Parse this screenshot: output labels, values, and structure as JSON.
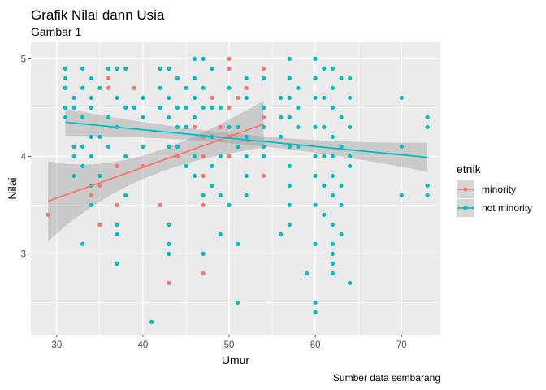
{
  "chart_data": {
    "type": "scatter",
    "title": "Grafik Nilai dann Usia",
    "subtitle": "Gambar 1",
    "xlabel": "Umur",
    "ylabel": "Nilai",
    "caption": "Sumber data sembarang",
    "xlim": [
      27,
      74.5
    ],
    "ylim": [
      2.17,
      5.17
    ],
    "x_ticks": [
      30,
      40,
      50,
      60,
      70
    ],
    "y_ticks": [
      3,
      4,
      5
    ],
    "x_tick_labels": [
      "30",
      "40",
      "50",
      "60",
      "70"
    ],
    "y_tick_labels": [
      "3",
      "4",
      "5"
    ],
    "grid": true,
    "legend": {
      "title": "etnik",
      "position": "right",
      "items": [
        {
          "label": "minority",
          "color": "#F8766D"
        },
        {
          "label": "not minority",
          "color": "#00BFC4"
        }
      ]
    },
    "series": [
      {
        "name": "minority",
        "color": "#F8766D",
        "points": [
          [
            29,
            3.4
          ],
          [
            34,
            3.6
          ],
          [
            35,
            3.3
          ],
          [
            35,
            3.7
          ],
          [
            36,
            4.8
          ],
          [
            36,
            4.7
          ],
          [
            37,
            3.9
          ],
          [
            37,
            3.5
          ],
          [
            39,
            4.7
          ],
          [
            40,
            3.9
          ],
          [
            42,
            3.5
          ],
          [
            43,
            2.7
          ],
          [
            44,
            4.0
          ],
          [
            46,
            4.3
          ],
          [
            47,
            4.2
          ],
          [
            47,
            4.0
          ],
          [
            47,
            3.8
          ],
          [
            47,
            3.5
          ],
          [
            47,
            2.8
          ],
          [
            48,
            4.6
          ],
          [
            49,
            4.3
          ],
          [
            50,
            5.0
          ],
          [
            50,
            4.9
          ],
          [
            50,
            4.5
          ],
          [
            50,
            4.2
          ],
          [
            50,
            4.0
          ],
          [
            51,
            4.6
          ],
          [
            52,
            4.7
          ],
          [
            54,
            4.9
          ],
          [
            54,
            4.4
          ],
          [
            54,
            3.8
          ]
        ],
        "trend": {
          "x": [
            29,
            54
          ],
          "y": [
            3.54,
            4.33
          ],
          "ci_lower": [
            3.13,
            4.09
          ],
          "ci_upper": [
            3.95,
            4.57
          ]
        }
      },
      {
        "name": "not minority",
        "color": "#00BFC4",
        "points": [
          [
            31,
            4.9
          ],
          [
            31,
            4.8
          ],
          [
            31,
            4.7
          ],
          [
            31,
            4.5
          ],
          [
            31,
            4.4
          ],
          [
            32,
            4.6
          ],
          [
            32,
            4.5
          ],
          [
            32,
            4.1
          ],
          [
            32,
            4.0
          ],
          [
            32,
            3.8
          ],
          [
            33,
            4.9
          ],
          [
            33,
            4.7
          ],
          [
            33,
            4.4
          ],
          [
            33,
            4.1
          ],
          [
            33,
            3.9
          ],
          [
            33,
            3.1
          ],
          [
            34,
            4.8
          ],
          [
            34,
            4.6
          ],
          [
            34,
            4.5
          ],
          [
            34,
            4.2
          ],
          [
            34,
            4.0
          ],
          [
            34,
            3.7
          ],
          [
            34,
            3.5
          ],
          [
            35,
            4.7
          ],
          [
            35,
            4.2
          ],
          [
            35,
            3.8
          ],
          [
            36,
            4.9
          ],
          [
            36,
            4.4
          ],
          [
            36,
            4.1
          ],
          [
            37,
            4.9
          ],
          [
            37,
            4.6
          ],
          [
            37,
            4.3
          ],
          [
            37,
            3.3
          ],
          [
            37,
            3.2
          ],
          [
            37,
            2.9
          ],
          [
            38,
            4.9
          ],
          [
            38,
            4.5
          ],
          [
            38,
            4.0
          ],
          [
            38,
            3.6
          ],
          [
            39,
            4.5
          ],
          [
            40,
            4.6
          ],
          [
            40,
            4.4
          ],
          [
            40,
            4.1
          ],
          [
            41,
            2.3
          ],
          [
            42,
            4.9
          ],
          [
            42,
            4.7
          ],
          [
            42,
            4.5
          ],
          [
            43,
            4.9
          ],
          [
            43,
            4.6
          ],
          [
            43,
            4.4
          ],
          [
            43,
            4.1
          ],
          [
            43,
            3.3
          ],
          [
            43,
            3.1
          ],
          [
            43,
            3.0
          ],
          [
            44,
            4.8
          ],
          [
            44,
            4.5
          ],
          [
            44,
            4.3
          ],
          [
            44,
            4.1
          ],
          [
            45,
            4.7
          ],
          [
            45,
            4.5
          ],
          [
            45,
            4.3
          ],
          [
            45,
            3.9
          ],
          [
            46,
            5.0
          ],
          [
            46,
            4.8
          ],
          [
            46,
            4.6
          ],
          [
            46,
            4.4
          ],
          [
            46,
            4.0
          ],
          [
            46,
            3.8
          ],
          [
            47,
            5.0
          ],
          [
            47,
            4.7
          ],
          [
            47,
            4.5
          ],
          [
            47,
            3.6
          ],
          [
            47,
            3.0
          ],
          [
            48,
            4.9
          ],
          [
            48,
            4.5
          ],
          [
            48,
            4.2
          ],
          [
            48,
            3.9
          ],
          [
            48,
            3.7
          ],
          [
            49,
            4.5
          ],
          [
            49,
            4.0
          ],
          [
            49,
            3.6
          ],
          [
            49,
            3.2
          ],
          [
            50,
            4.7
          ],
          [
            50,
            4.3
          ],
          [
            50,
            3.5
          ],
          [
            51,
            4.3
          ],
          [
            51,
            4.1
          ],
          [
            51,
            3.1
          ],
          [
            51,
            2.5
          ],
          [
            52,
            4.8
          ],
          [
            52,
            4.6
          ],
          [
            52,
            4.2
          ],
          [
            52,
            4.0
          ],
          [
            52,
            3.8
          ],
          [
            52,
            3.6
          ],
          [
            54,
            4.8
          ],
          [
            54,
            4.5
          ],
          [
            54,
            4.3
          ],
          [
            54,
            4.1
          ],
          [
            54,
            4.0
          ],
          [
            56,
            4.6
          ],
          [
            56,
            4.4
          ],
          [
            56,
            4.2
          ],
          [
            56,
            3.2
          ],
          [
            57,
            5.0
          ],
          [
            57,
            4.8
          ],
          [
            57,
            4.6
          ],
          [
            57,
            4.4
          ],
          [
            57,
            4.1
          ],
          [
            57,
            3.9
          ],
          [
            57,
            3.7
          ],
          [
            57,
            3.5
          ],
          [
            57,
            3.3
          ],
          [
            58,
            4.7
          ],
          [
            58,
            4.5
          ],
          [
            58,
            4.3
          ],
          [
            58,
            4.1
          ],
          [
            59,
            2.8
          ],
          [
            60,
            5.0
          ],
          [
            60,
            4.8
          ],
          [
            60,
            4.6
          ],
          [
            60,
            4.3
          ],
          [
            60,
            4.0
          ],
          [
            60,
            3.8
          ],
          [
            60,
            3.5
          ],
          [
            60,
            3.1
          ],
          [
            60,
            2.5
          ],
          [
            60,
            2.4
          ],
          [
            61,
            4.9
          ],
          [
            61,
            4.6
          ],
          [
            61,
            4.3
          ],
          [
            61,
            4.0
          ],
          [
            61,
            3.7
          ],
          [
            61,
            3.4
          ],
          [
            62,
            4.9
          ],
          [
            62,
            4.7
          ],
          [
            62,
            4.5
          ],
          [
            62,
            4.2
          ],
          [
            62,
            4.0
          ],
          [
            62,
            3.8
          ],
          [
            62,
            3.6
          ],
          [
            62,
            3.3
          ],
          [
            62,
            3.1
          ],
          [
            62,
            3.0
          ],
          [
            62,
            2.9
          ],
          [
            62,
            2.8
          ],
          [
            63,
            4.8
          ],
          [
            63,
            4.4
          ],
          [
            63,
            4.1
          ],
          [
            63,
            3.7
          ],
          [
            63,
            3.5
          ],
          [
            63,
            3.2
          ],
          [
            64,
            4.8
          ],
          [
            64,
            4.6
          ],
          [
            64,
            4.3
          ],
          [
            64,
            4.0
          ],
          [
            64,
            3.9
          ],
          [
            64,
            2.7
          ],
          [
            70,
            4.6
          ],
          [
            70,
            4.1
          ],
          [
            70,
            3.6
          ],
          [
            73,
            4.4
          ],
          [
            73,
            4.3
          ],
          [
            73,
            3.7
          ],
          [
            73,
            3.6
          ]
        ],
        "trend": {
          "x": [
            31,
            73
          ],
          "y": [
            4.35,
            3.99
          ],
          "ci_lower": [
            4.21,
            3.84
          ],
          "ci_upper": [
            4.49,
            4.14
          ]
        }
      }
    ]
  }
}
